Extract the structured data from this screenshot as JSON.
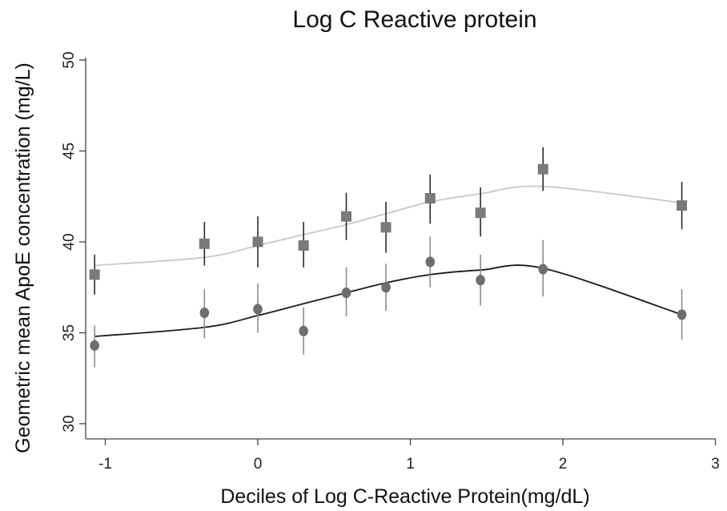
{
  "chart_data": {
    "type": "scatter",
    "title": "Log C Reactive protein",
    "xlabel": "Deciles of Log C-Reactive Protein(mg/dL)",
    "ylabel": "Geometric mean ApoE concentration  (mg/L)",
    "xlim": [
      -1.1,
      3.0
    ],
    "ylim": [
      30,
      50
    ],
    "xticks": [
      -1,
      0,
      1,
      2,
      3
    ],
    "xtick_labels": [
      "-1",
      "0",
      "1",
      "2",
      "3"
    ],
    "yticks": [
      30,
      35,
      40,
      45,
      50
    ],
    "ytick_labels": [
      "30",
      "35",
      "40",
      "45",
      "50"
    ],
    "grid": false,
    "legend": "none",
    "series": [
      {
        "marker": "square",
        "color": "#7a7a7a",
        "error_bar_color": "#2a2a2a",
        "x": [
          -1.07,
          -0.35,
          0.0,
          0.3,
          0.58,
          0.84,
          1.13,
          1.46,
          1.87,
          2.78
        ],
        "y": [
          38.2,
          39.9,
          40.0,
          39.8,
          41.4,
          40.8,
          42.4,
          41.6,
          44.0,
          42.0
        ],
        "lower": [
          37.1,
          38.7,
          38.6,
          38.6,
          40.1,
          39.4,
          41.0,
          40.3,
          42.8,
          40.7
        ],
        "upper": [
          39.3,
          41.1,
          41.4,
          41.1,
          42.7,
          42.2,
          43.7,
          43.0,
          45.2,
          43.3
        ],
        "fit_x": [
          -1.07,
          -0.35,
          0.0,
          0.3,
          0.58,
          0.84,
          1.13,
          1.46,
          1.87,
          2.78
        ],
        "fit_y": [
          38.7,
          39.15,
          39.8,
          40.4,
          40.95,
          41.55,
          42.2,
          42.65,
          43.05,
          42.15
        ],
        "fit_color": "#c8c8c8"
      },
      {
        "marker": "circle",
        "color": "#6e6e6e",
        "error_bar_color": "#8c8c8c",
        "x": [
          -1.07,
          -0.35,
          0.0,
          0.3,
          0.58,
          0.84,
          1.13,
          1.46,
          1.87,
          2.78
        ],
        "y": [
          34.3,
          36.1,
          36.3,
          35.1,
          37.2,
          37.5,
          38.9,
          37.9,
          38.5,
          36.0
        ],
        "lower": [
          33.1,
          34.7,
          35.0,
          33.8,
          35.9,
          36.2,
          37.5,
          36.5,
          37.0,
          34.6
        ],
        "upper": [
          35.4,
          37.4,
          37.7,
          36.4,
          38.6,
          38.8,
          40.3,
          39.3,
          40.1,
          37.4
        ],
        "fit_x": [
          -1.07,
          -0.35,
          0.0,
          0.3,
          0.58,
          0.84,
          1.13,
          1.46,
          1.87,
          2.78
        ],
        "fit_y": [
          34.8,
          35.3,
          35.95,
          36.6,
          37.2,
          37.75,
          38.2,
          38.45,
          38.55,
          36.0
        ],
        "fit_color": "#1a1a1a"
      }
    ]
  }
}
